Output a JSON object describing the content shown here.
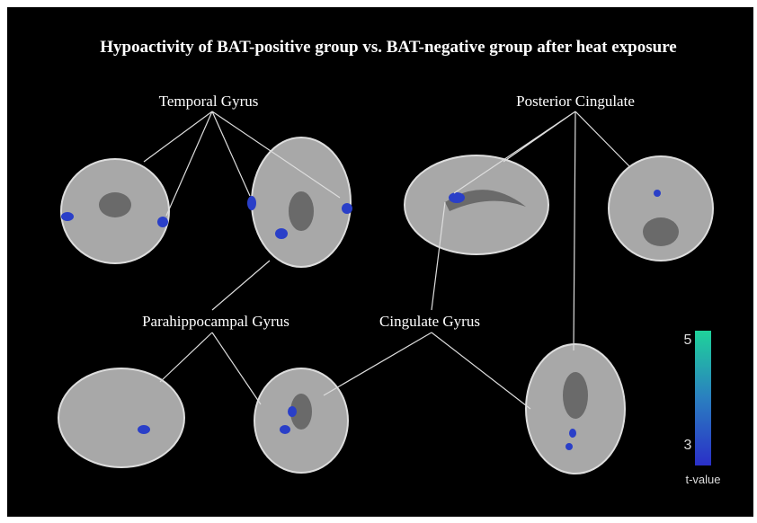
{
  "title": "Hypoactivity of BAT-positive group vs. BAT-negative group after heat exposure",
  "labels": [
    "Temporal Gyrus",
    "Posterior Cingulate",
    "Parahippocampal Gyrus",
    "Cingulate Gyrus"
  ],
  "colorbar": {
    "max_label": "5",
    "min_label": "3",
    "title": "t-value"
  }
}
